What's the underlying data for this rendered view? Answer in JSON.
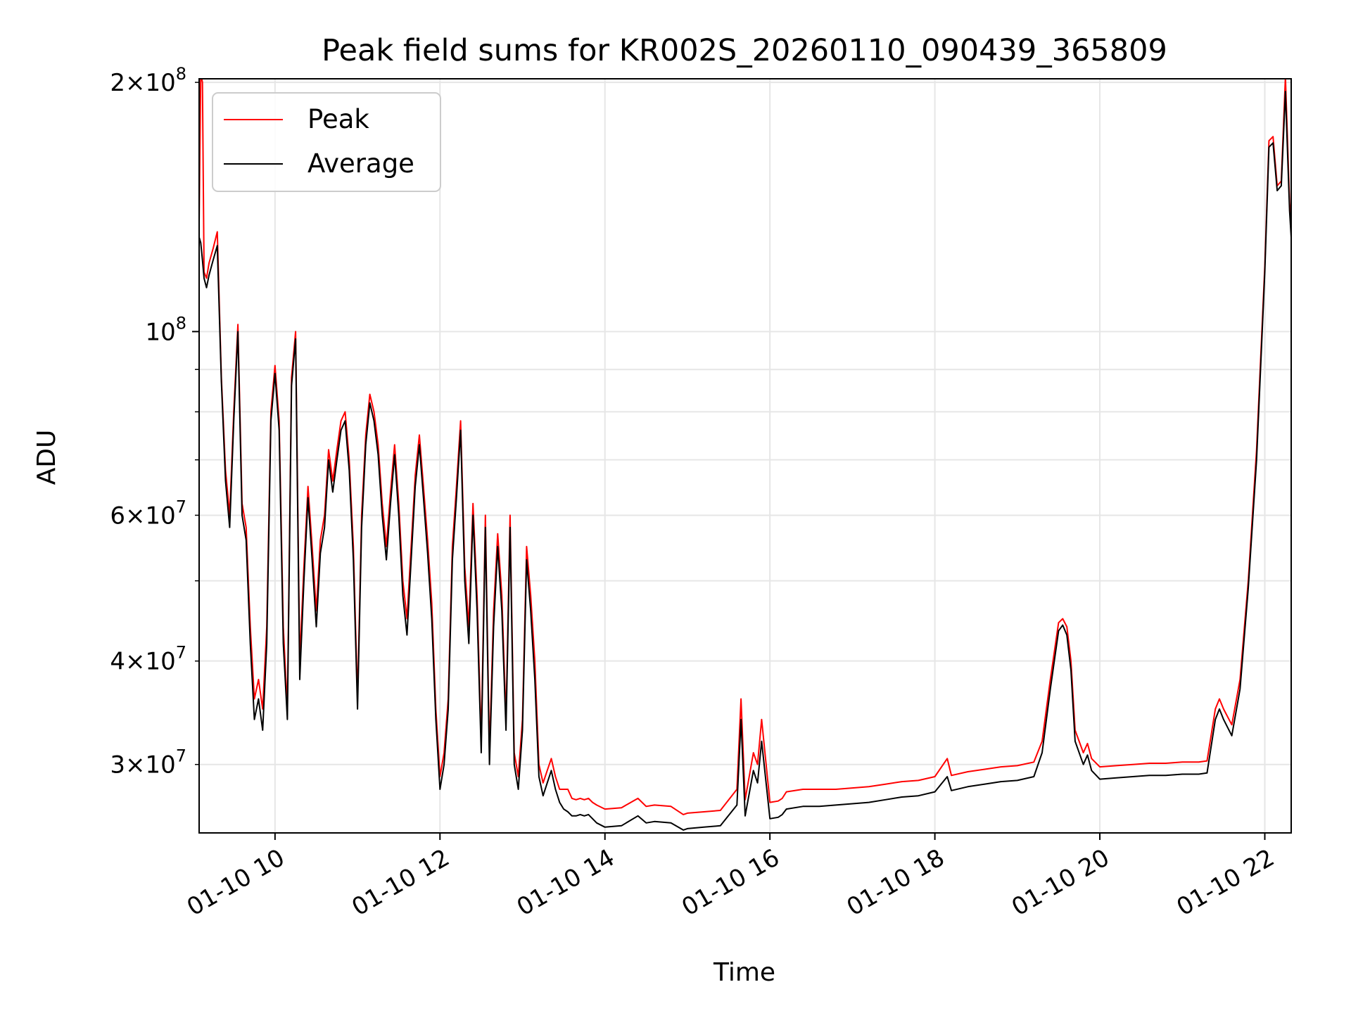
{
  "chart_data": {
    "type": "line",
    "title": "Peak field sums for KR002S_20260110_090439_365809",
    "xlabel": "Time",
    "ylabel": "ADU",
    "yscale": "log",
    "xlim": [
      9.08,
      22.32
    ],
    "ylim": [
      24800000,
      202000000
    ],
    "x_ticks": [
      {
        "value": 10,
        "label": "01-10 10"
      },
      {
        "value": 12,
        "label": "01-10 12"
      },
      {
        "value": 14,
        "label": "01-10 14"
      },
      {
        "value": 16,
        "label": "01-10 16"
      },
      {
        "value": 18,
        "label": "01-10 18"
      },
      {
        "value": 20,
        "label": "01-10 20"
      },
      {
        "value": 22,
        "label": "01-10 22"
      }
    ],
    "y_major_ticks": [
      {
        "value": 100000000,
        "mantissa": "",
        "base": "10",
        "exp": "8"
      }
    ],
    "y_minor_ticks": [
      {
        "value": 30000000,
        "mantissa": "3",
        "base": "10",
        "exp": "7"
      },
      {
        "value": 40000000,
        "mantissa": "4",
        "base": "10",
        "exp": "7"
      },
      {
        "value": 60000000,
        "mantissa": "6",
        "base": "10",
        "exp": "7"
      },
      {
        "value": 200000000,
        "mantissa": "2",
        "base": "10",
        "exp": "8"
      }
    ],
    "y_unlabeled_minor": [
      50000000,
      70000000,
      80000000,
      90000000
    ],
    "grid": true,
    "legend_position": "upper-left",
    "times_sci_sign": "×",
    "series": [
      {
        "name": "Peak",
        "color": "#ff0000",
        "x": [
          9.08,
          9.1,
          9.12,
          9.14,
          9.17,
          9.2,
          9.25,
          9.3,
          9.35,
          9.4,
          9.45,
          9.5,
          9.55,
          9.6,
          9.65,
          9.7,
          9.75,
          9.8,
          9.85,
          9.9,
          9.95,
          10.0,
          10.05,
          10.1,
          10.15,
          10.2,
          10.25,
          10.3,
          10.35,
          10.4,
          10.45,
          10.5,
          10.55,
          10.6,
          10.65,
          10.7,
          10.75,
          10.8,
          10.85,
          10.9,
          10.95,
          11.0,
          11.05,
          11.1,
          11.15,
          11.2,
          11.25,
          11.3,
          11.35,
          11.4,
          11.45,
          11.5,
          11.55,
          11.6,
          11.65,
          11.7,
          11.75,
          11.8,
          11.85,
          11.9,
          11.95,
          12.0,
          12.05,
          12.1,
          12.15,
          12.2,
          12.25,
          12.3,
          12.35,
          12.4,
          12.45,
          12.5,
          12.55,
          12.6,
          12.65,
          12.7,
          12.75,
          12.8,
          12.85,
          12.9,
          12.95,
          13.0,
          13.05,
          13.1,
          13.15,
          13.2,
          13.25,
          13.3,
          13.35,
          13.4,
          13.45,
          13.5,
          13.55,
          13.6,
          13.65,
          13.7,
          13.75,
          13.8,
          13.85,
          13.9,
          14.0,
          14.2,
          14.4,
          14.5,
          14.6,
          14.8,
          14.95,
          15.0,
          15.2,
          15.4,
          15.6,
          15.65,
          15.7,
          15.8,
          15.85,
          15.9,
          16.0,
          16.1,
          16.15,
          16.2,
          16.4,
          16.6,
          16.8,
          17.0,
          17.2,
          17.4,
          17.6,
          17.8,
          18.0,
          18.15,
          18.2,
          18.4,
          18.6,
          18.8,
          19.0,
          19.2,
          19.3,
          19.4,
          19.5,
          19.55,
          19.6,
          19.65,
          19.7,
          19.8,
          19.85,
          19.9,
          20.0,
          20.2,
          20.4,
          20.6,
          20.8,
          21.0,
          21.2,
          21.3,
          21.4,
          21.45,
          21.5,
          21.6,
          21.7,
          21.8,
          21.9,
          22.0,
          22.05,
          22.1,
          22.15,
          22.2,
          22.25,
          22.3,
          22.32
        ],
        "y": [
          135000000,
          205000000,
          200000000,
          118000000,
          116000000,
          121000000,
          126000000,
          132000000,
          88000000,
          68000000,
          60000000,
          80000000,
          102000000,
          62000000,
          58000000,
          44000000,
          36000000,
          38000000,
          35000000,
          44000000,
          80000000,
          91000000,
          78000000,
          44000000,
          35000000,
          88000000,
          100000000,
          40000000,
          52000000,
          65000000,
          55000000,
          46000000,
          56000000,
          60000000,
          72000000,
          66000000,
          72000000,
          78000000,
          80000000,
          70000000,
          55000000,
          36000000,
          60000000,
          75000000,
          84000000,
          80000000,
          73000000,
          62000000,
          55000000,
          64000000,
          73000000,
          62000000,
          50000000,
          45000000,
          55000000,
          67000000,
          75000000,
          65000000,
          56000000,
          47000000,
          35000000,
          29000000,
          31000000,
          36000000,
          55000000,
          65000000,
          78000000,
          52000000,
          44000000,
          62000000,
          48000000,
          32000000,
          60000000,
          31000000,
          46000000,
          57000000,
          48000000,
          34000000,
          60000000,
          31000000,
          29000000,
          34000000,
          55000000,
          48000000,
          40000000,
          30000000,
          28500000,
          29500000,
          30500000,
          29000000,
          28000000,
          28000000,
          28000000,
          27300000,
          27200000,
          27300000,
          27200000,
          27300000,
          27000000,
          26800000,
          26500000,
          26600000,
          27300000,
          26700000,
          26800000,
          26700000,
          26100000,
          26200000,
          26300000,
          26400000,
          28000000,
          36000000,
          27200000,
          31000000,
          30000000,
          34000000,
          27000000,
          27100000,
          27300000,
          27800000,
          28000000,
          28000000,
          28000000,
          28100000,
          28200000,
          28400000,
          28600000,
          28700000,
          29000000,
          30500000,
          29100000,
          29400000,
          29600000,
          29800000,
          29900000,
          30200000,
          32000000,
          38000000,
          44500000,
          45000000,
          44000000,
          40000000,
          33000000,
          31000000,
          31800000,
          30500000,
          29800000,
          29900000,
          30000000,
          30100000,
          30100000,
          30200000,
          30200000,
          30300000,
          35000000,
          36000000,
          35000000,
          33500000,
          38000000,
          50000000,
          72000000,
          120000000,
          170000000,
          172000000,
          150000000,
          152000000,
          203000000,
          143000000,
          135000000
        ]
      },
      {
        "name": "Average",
        "color": "#000000",
        "x": [
          9.08,
          9.1,
          9.12,
          9.14,
          9.17,
          9.2,
          9.25,
          9.3,
          9.35,
          9.4,
          9.45,
          9.5,
          9.55,
          9.6,
          9.65,
          9.7,
          9.75,
          9.8,
          9.85,
          9.9,
          9.95,
          10.0,
          10.05,
          10.1,
          10.15,
          10.2,
          10.25,
          10.3,
          10.35,
          10.4,
          10.45,
          10.5,
          10.55,
          10.6,
          10.65,
          10.7,
          10.75,
          10.8,
          10.85,
          10.9,
          10.95,
          11.0,
          11.05,
          11.1,
          11.15,
          11.2,
          11.25,
          11.3,
          11.35,
          11.4,
          11.45,
          11.5,
          11.55,
          11.6,
          11.65,
          11.7,
          11.75,
          11.8,
          11.85,
          11.9,
          11.95,
          12.0,
          12.05,
          12.1,
          12.15,
          12.2,
          12.25,
          12.3,
          12.35,
          12.4,
          12.45,
          12.5,
          12.55,
          12.6,
          12.65,
          12.7,
          12.75,
          12.8,
          12.85,
          12.9,
          12.95,
          13.0,
          13.05,
          13.1,
          13.15,
          13.2,
          13.25,
          13.3,
          13.35,
          13.4,
          13.45,
          13.5,
          13.55,
          13.6,
          13.65,
          13.7,
          13.75,
          13.8,
          13.85,
          13.9,
          14.0,
          14.2,
          14.4,
          14.5,
          14.6,
          14.8,
          14.95,
          15.0,
          15.2,
          15.4,
          15.6,
          15.65,
          15.7,
          15.8,
          15.85,
          15.9,
          16.0,
          16.1,
          16.15,
          16.2,
          16.4,
          16.6,
          16.8,
          17.0,
          17.2,
          17.4,
          17.6,
          17.8,
          18.0,
          18.15,
          18.2,
          18.4,
          18.6,
          18.8,
          19.0,
          19.2,
          19.3,
          19.4,
          19.5,
          19.55,
          19.6,
          19.65,
          19.7,
          19.8,
          19.85,
          19.9,
          20.0,
          20.2,
          20.4,
          20.6,
          20.8,
          21.0,
          21.2,
          21.3,
          21.4,
          21.45,
          21.5,
          21.6,
          21.7,
          21.8,
          21.9,
          22.0,
          22.05,
          22.1,
          22.15,
          22.2,
          22.25,
          22.3,
          22.32
        ],
        "y": [
          130000000,
          128000000,
          122000000,
          116000000,
          113000000,
          117000000,
          122000000,
          127000000,
          87000000,
          66000000,
          58000000,
          78000000,
          100000000,
          60000000,
          56000000,
          42000000,
          34000000,
          36000000,
          33000000,
          42000000,
          78000000,
          89000000,
          76000000,
          42000000,
          34000000,
          86000000,
          98000000,
          38000000,
          50000000,
          63000000,
          53000000,
          44000000,
          54000000,
          58000000,
          70000000,
          64000000,
          70000000,
          76000000,
          78000000,
          68000000,
          53000000,
          35000000,
          58000000,
          73000000,
          82000000,
          78000000,
          71000000,
          60000000,
          53000000,
          62000000,
          71000000,
          60000000,
          48000000,
          43000000,
          53000000,
          65000000,
          73000000,
          63000000,
          54000000,
          45000000,
          34000000,
          28000000,
          30000000,
          35000000,
          53000000,
          63000000,
          76000000,
          50000000,
          42000000,
          60000000,
          46000000,
          31000000,
          58000000,
          30000000,
          44000000,
          55000000,
          46000000,
          33000000,
          58000000,
          30000000,
          28000000,
          33000000,
          53000000,
          46000000,
          38000000,
          29000000,
          27500000,
          28500000,
          29500000,
          28000000,
          27000000,
          26500000,
          26300000,
          26000000,
          26000000,
          26100000,
          26000000,
          26100000,
          25800000,
          25500000,
          25200000,
          25300000,
          26000000,
          25500000,
          25600000,
          25500000,
          25000000,
          25100000,
          25200000,
          25300000,
          26800000,
          34000000,
          26000000,
          29500000,
          28500000,
          32000000,
          25800000,
          25900000,
          26100000,
          26500000,
          26700000,
          26700000,
          26800000,
          26900000,
          27000000,
          27200000,
          27400000,
          27500000,
          27800000,
          29000000,
          27900000,
          28200000,
          28400000,
          28600000,
          28700000,
          29000000,
          31000000,
          37000000,
          43500000,
          44200000,
          43000000,
          39000000,
          32000000,
          30000000,
          30800000,
          29500000,
          28800000,
          28900000,
          29000000,
          29100000,
          29100000,
          29200000,
          29200000,
          29300000,
          34000000,
          35000000,
          34000000,
          32500000,
          37000000,
          49000000,
          70000000,
          118000000,
          167000000,
          169000000,
          148000000,
          150000000,
          195000000,
          140000000,
          130000000
        ]
      }
    ]
  }
}
